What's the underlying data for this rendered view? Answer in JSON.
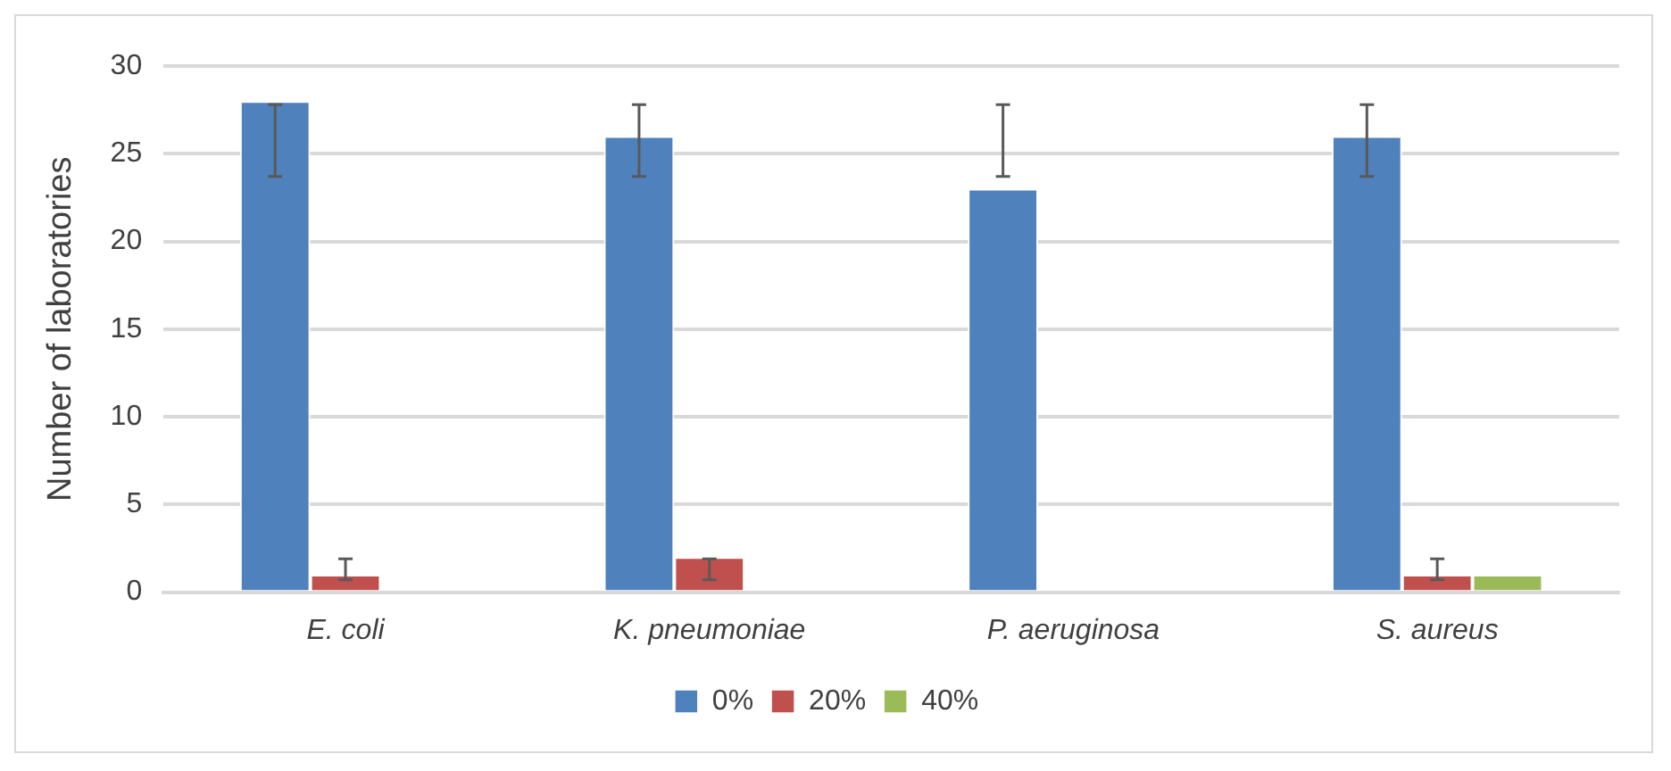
{
  "chart_data": {
    "type": "bar",
    "ylabel": "Number of laboratories",
    "categories": [
      "E. coli",
      "K. pneumoniae",
      "P. aeruginosa",
      "S. aureus"
    ],
    "series": [
      {
        "name": "0%",
        "color": "#4f81bd",
        "values": [
          28,
          26,
          23,
          26
        ],
        "errors": [
          [
            23.7,
            27.8
          ],
          [
            23.7,
            27.8
          ],
          [
            23.7,
            27.8
          ],
          [
            23.7,
            27.8
          ]
        ]
      },
      {
        "name": "20%",
        "color": "#c0504d",
        "values": [
          1,
          2,
          null,
          1
        ],
        "errors": [
          [
            0.7,
            1.9
          ],
          [
            0.7,
            1.9
          ],
          null,
          [
            0.7,
            1.9
          ]
        ]
      },
      {
        "name": "40%",
        "color": "#9bbb59",
        "values": [
          null,
          null,
          null,
          1
        ]
      }
    ],
    "ylim": [
      0,
      30
    ],
    "yticks": [
      0,
      5,
      10,
      15,
      20,
      25,
      30
    ],
    "grid": "y",
    "legend": "bottom"
  }
}
